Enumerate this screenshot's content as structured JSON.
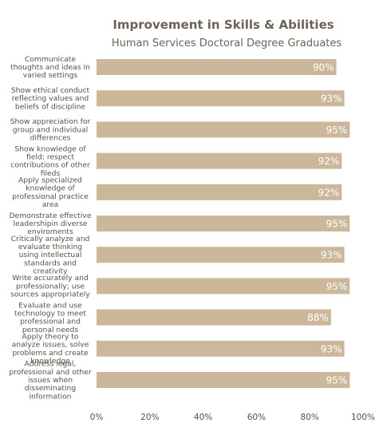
{
  "chart_data": {
    "type": "bar",
    "orientation": "horizontal",
    "title": "Improvement in Skills & Abilities",
    "subtitle": "Human Services Doctoral Degree Graduates",
    "xlabel": "",
    "ylabel": "",
    "xlim": [
      0,
      100
    ],
    "tick_labels": [
      "0%",
      "20%",
      "40%",
      "60%",
      "80%",
      "100%"
    ],
    "grid": false,
    "legend": "none",
    "bar_color": "#cbb89b",
    "text_color": "#5a5048",
    "categories": [
      [
        "Communicate",
        "thoughts and ideas in",
        "varied settings"
      ],
      [
        "Show ethical conduct",
        "reflecting values and",
        "beliefs of discipline"
      ],
      [
        "Show appreciation for",
        "group and individual",
        "differences"
      ],
      [
        "Show knowledge of",
        "field; respect",
        "contributions of other",
        "fileds"
      ],
      [
        "Apply specialized",
        "knowledge of",
        "professional practice",
        "area"
      ],
      [
        "Demonstrate effective",
        "leadershipin diverse",
        "enviroments"
      ],
      [
        "Critically analyze and",
        "evaluate thinking",
        "using intellectual",
        "standards and",
        "creativity"
      ],
      [
        "Write accurately and",
        "professionally; use",
        "sources appropriately"
      ],
      [
        "Evaluate and use",
        "technology to meet",
        "professional and",
        "personal needs"
      ],
      [
        "Apply theory to",
        "analyze issues, solve",
        "problems and create",
        "knowledge"
      ],
      [
        "Address legal,",
        "professional and other",
        "issues when",
        "disseminating",
        "information"
      ]
    ],
    "values": [
      90,
      93,
      95,
      92,
      92,
      95,
      93,
      95,
      88,
      93,
      95
    ],
    "data_labels": [
      "90%",
      "93%",
      "95%",
      "92%",
      "92%",
      "95%",
      "93%",
      "95%",
      "88%",
      "93%",
      "95%"
    ]
  }
}
